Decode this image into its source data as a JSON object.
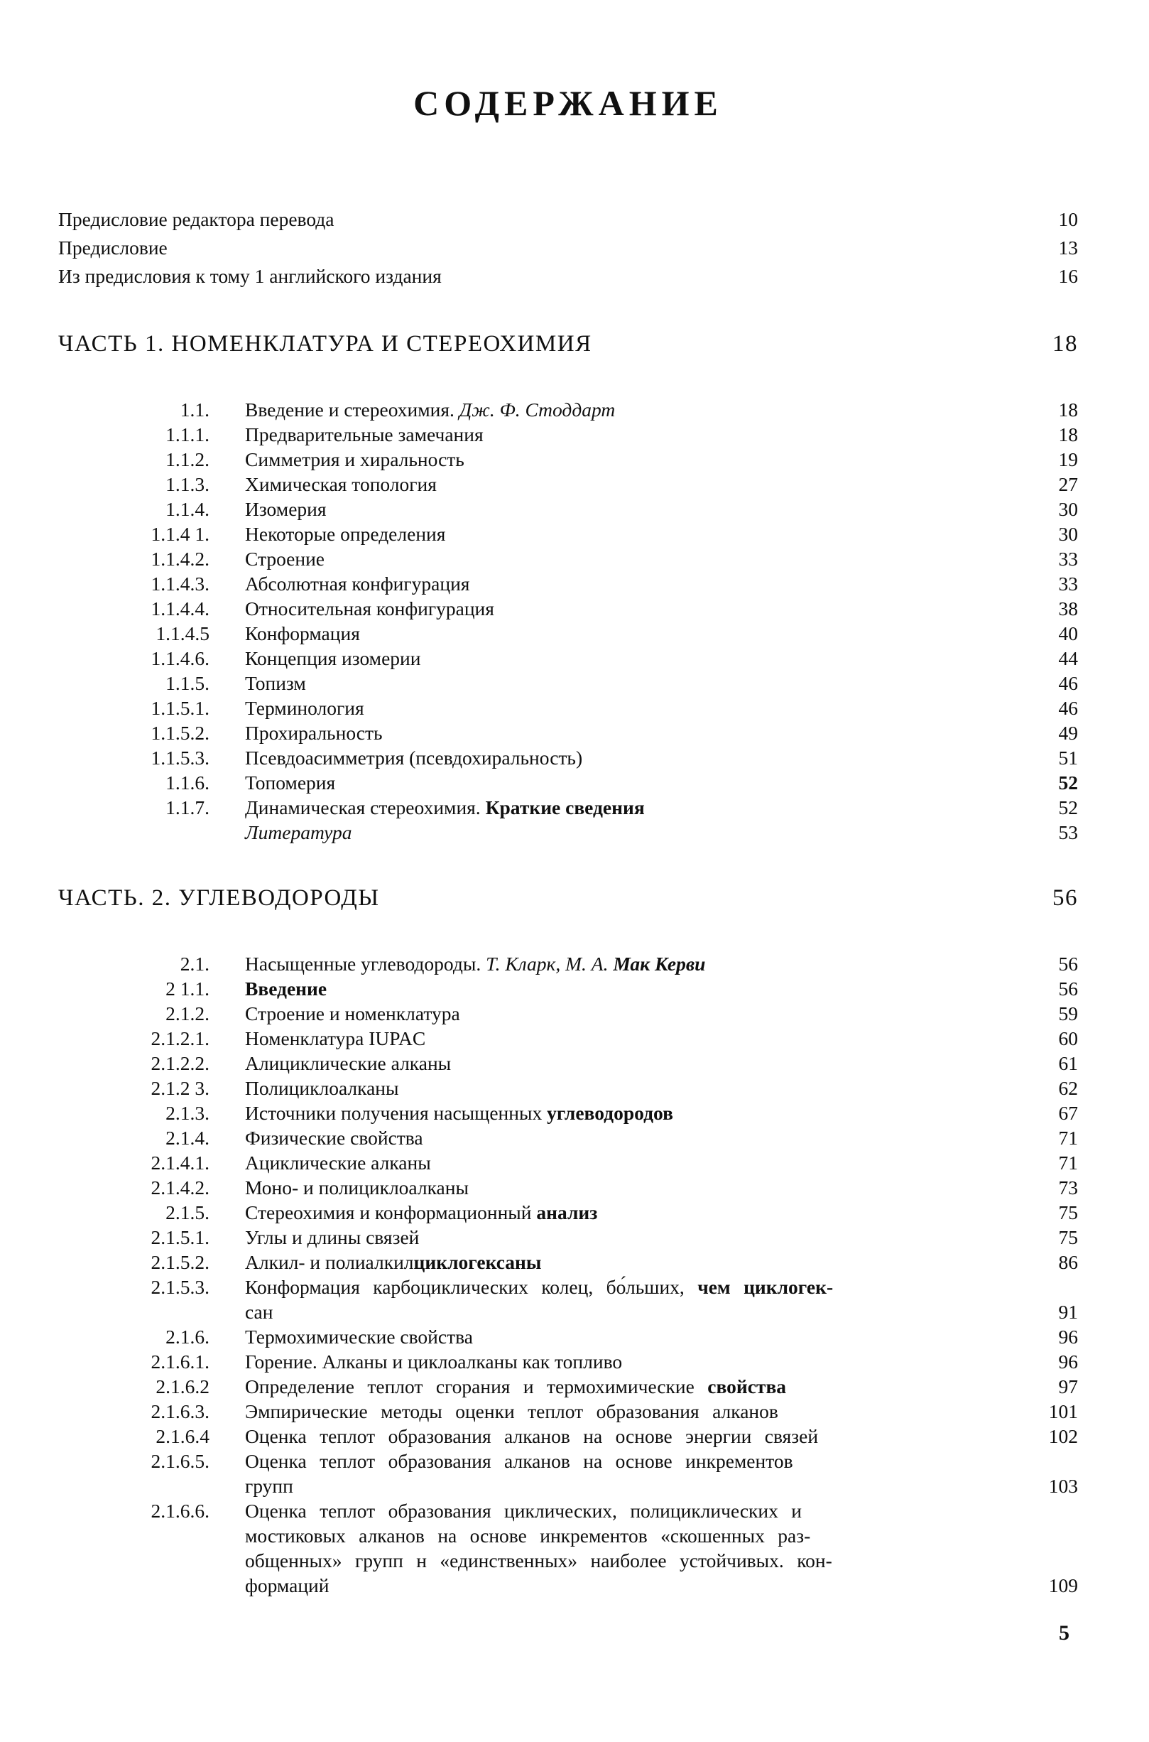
{
  "page": {
    "title": "СОДЕРЖАНИЕ",
    "folio": "5"
  },
  "front_matter": [
    {
      "title": "Предисловие редактора перевода",
      "page": "10"
    },
    {
      "title": "Предисловие",
      "page": "13"
    },
    {
      "title": "Из предисловия к тому 1 английского издания",
      "page": "16"
    }
  ],
  "sections": [
    {
      "heading": "ЧАСТЬ 1. НОМЕНКЛАТУРА И СТЕРЕОХИМИЯ",
      "page": "18",
      "entries": [
        {
          "num": "1.1.",
          "page": "18",
          "lines": [
            {
              "parts": [
                {
                  "t": "Введение и стереохимия. ",
                  "s": ""
                },
                {
                  "t": "Дж. Ф. Стоддарт",
                  "s": "i"
                }
              ]
            }
          ]
        },
        {
          "num": "1.1.1.",
          "page": "18",
          "lines": [
            {
              "parts": [
                {
                  "t": "Предварительные замечания",
                  "s": ""
                }
              ]
            }
          ]
        },
        {
          "num": "1.1.2.",
          "page": "19",
          "lines": [
            {
              "parts": [
                {
                  "t": "Симметрия и хиральность",
                  "s": ""
                }
              ]
            }
          ]
        },
        {
          "num": "1.1.3.",
          "page": "27",
          "lines": [
            {
              "parts": [
                {
                  "t": "Химическая топология",
                  "s": ""
                }
              ]
            }
          ]
        },
        {
          "num": "1.1.4.",
          "page": "30",
          "lines": [
            {
              "parts": [
                {
                  "t": "Изомерия",
                  "s": ""
                }
              ]
            }
          ]
        },
        {
          "num": "1.1.4 1.",
          "page": "30",
          "lines": [
            {
              "parts": [
                {
                  "t": "Некоторые определения",
                  "s": ""
                }
              ]
            }
          ]
        },
        {
          "num": "1.1.4.2.",
          "page": "33",
          "lines": [
            {
              "parts": [
                {
                  "t": "Строение",
                  "s": ""
                }
              ]
            }
          ]
        },
        {
          "num": "1.1.4.3.",
          "page": "33",
          "lines": [
            {
              "parts": [
                {
                  "t": "Абсолютная конфигурация",
                  "s": ""
                }
              ]
            }
          ]
        },
        {
          "num": "1.1.4.4.",
          "page": "38",
          "lines": [
            {
              "parts": [
                {
                  "t": "Относительная конфигурация",
                  "s": ""
                }
              ]
            }
          ]
        },
        {
          "num": "1.1.4.5",
          "page": "40",
          "lines": [
            {
              "parts": [
                {
                  "t": "Конформация",
                  "s": ""
                }
              ]
            }
          ]
        },
        {
          "num": "1.1.4.6.",
          "page": "44",
          "lines": [
            {
              "parts": [
                {
                  "t": "Концепция изомерии",
                  "s": ""
                }
              ]
            }
          ]
        },
        {
          "num": "1.1.5.",
          "page": "46",
          "lines": [
            {
              "parts": [
                {
                  "t": "Топизм",
                  "s": ""
                }
              ]
            }
          ]
        },
        {
          "num": "1.1.5.1.",
          "page": "46",
          "lines": [
            {
              "parts": [
                {
                  "t": "Терминология",
                  "s": ""
                }
              ]
            }
          ]
        },
        {
          "num": "1.1.5.2.",
          "page": "49",
          "lines": [
            {
              "parts": [
                {
                  "t": "Прохиральность",
                  "s": ""
                }
              ]
            }
          ]
        },
        {
          "num": "1.1.5.3.",
          "page": "51",
          "lines": [
            {
              "parts": [
                {
                  "t": "Псевдоасимметрия (псевдохиральность)",
                  "s": ""
                }
              ]
            }
          ]
        },
        {
          "num": "1.1.6.",
          "page": "52",
          "pageBold": true,
          "lines": [
            {
              "parts": [
                {
                  "t": "Топомерия",
                  "s": ""
                }
              ]
            }
          ]
        },
        {
          "num": "1.1.7.",
          "page": "52",
          "lines": [
            {
              "parts": [
                {
                  "t": "Динамическая стереохимия. ",
                  "s": ""
                },
                {
                  "t": "Краткие сведения",
                  "s": "b"
                }
              ]
            }
          ]
        },
        {
          "num": "",
          "page": "53",
          "lines": [
            {
              "parts": [
                {
                  "t": "Литература",
                  "s": "i"
                }
              ]
            }
          ]
        }
      ]
    },
    {
      "heading": "ЧАСТЬ. 2. УГЛЕВОДОРОДЫ",
      "page": "56",
      "entries": [
        {
          "num": "2.1.",
          "page": "56",
          "lines": [
            {
              "parts": [
                {
                  "t": "Насыщенные углеводороды. ",
                  "s": ""
                },
                {
                  "t": "Т. Кларк, М. А. ",
                  "s": "i"
                },
                {
                  "t": "Мак Керви",
                  "s": "bi"
                }
              ]
            }
          ]
        },
        {
          "num": "2 1.1.",
          "page": "56",
          "lines": [
            {
              "parts": [
                {
                  "t": "Введение",
                  "s": "b"
                }
              ]
            }
          ]
        },
        {
          "num": "2.1.2.",
          "page": "59",
          "lines": [
            {
              "parts": [
                {
                  "t": "Строение и номенклатура",
                  "s": ""
                }
              ]
            }
          ]
        },
        {
          "num": "2.1.2.1.",
          "page": "60",
          "lines": [
            {
              "parts": [
                {
                  "t": "Номенклатура IUPAC",
                  "s": ""
                }
              ]
            }
          ]
        },
        {
          "num": "2.1.2.2.",
          "page": "61",
          "lines": [
            {
              "parts": [
                {
                  "t": "Алициклические алканы",
                  "s": ""
                }
              ]
            }
          ]
        },
        {
          "num": "2.1.2 3.",
          "page": "62",
          "lines": [
            {
              "parts": [
                {
                  "t": "Полициклоалканы",
                  "s": ""
                }
              ]
            }
          ]
        },
        {
          "num": "2.1.3.",
          "page": "67",
          "lines": [
            {
              "parts": [
                {
                  "t": "Источники получения насыщенных ",
                  "s": ""
                },
                {
                  "t": "углеводородов",
                  "s": "b"
                }
              ]
            }
          ]
        },
        {
          "num": "2.1.4.",
          "page": "71",
          "lines": [
            {
              "parts": [
                {
                  "t": "Физические свойства",
                  "s": ""
                }
              ]
            }
          ]
        },
        {
          "num": "2.1.4.1.",
          "page": "71",
          "lines": [
            {
              "parts": [
                {
                  "t": "Ациклические алканы",
                  "s": ""
                }
              ]
            }
          ]
        },
        {
          "num": "2.1.4.2.",
          "page": "73",
          "lines": [
            {
              "parts": [
                {
                  "t": "Моно- и полициклоалканы",
                  "s": ""
                }
              ]
            }
          ]
        },
        {
          "num": "2.1.5.",
          "page": "75",
          "lines": [
            {
              "parts": [
                {
                  "t": "Стереохимия и конформационный ",
                  "s": ""
                },
                {
                  "t": "анализ",
                  "s": "b"
                }
              ]
            }
          ]
        },
        {
          "num": "2.1.5.1.",
          "page": "75",
          "lines": [
            {
              "parts": [
                {
                  "t": "Углы и длины связей",
                  "s": ""
                }
              ]
            }
          ]
        },
        {
          "num": "2.1.5.2.",
          "page": "86",
          "lines": [
            {
              "parts": [
                {
                  "t": "Алкил- и полиалкил",
                  "s": ""
                },
                {
                  "t": "циклогексаны",
                  "s": "b"
                }
              ]
            }
          ]
        },
        {
          "num": "2.1.5.3.",
          "page": "91",
          "lines": [
            {
              "sp": true,
              "parts": [
                {
                  "t": "Конформация карбоциклических колец, бо́льших, ",
                  "s": ""
                },
                {
                  "t": "чем циклогек-",
                  "s": "b"
                }
              ]
            },
            {
              "parts": [
                {
                  "t": "сан",
                  "s": ""
                }
              ]
            }
          ]
        },
        {
          "num": "2.1.6.",
          "page": "96",
          "lines": [
            {
              "parts": [
                {
                  "t": "Термохимические свойства",
                  "s": ""
                }
              ]
            }
          ]
        },
        {
          "num": "2.1.6.1.",
          "page": "96",
          "lines": [
            {
              "parts": [
                {
                  "t": "Горение. Алканы и циклоалканы как топливо",
                  "s": ""
                }
              ]
            }
          ]
        },
        {
          "num": "2.1.6.2",
          "page": "97",
          "lines": [
            {
              "sp": true,
              "parts": [
                {
                  "t": "Определение теплот сгорания и термохимические ",
                  "s": ""
                },
                {
                  "t": "свойства",
                  "s": "b"
                }
              ]
            }
          ]
        },
        {
          "num": "2.1.6.3.",
          "page": "101",
          "lines": [
            {
              "sp": true,
              "parts": [
                {
                  "t": "Эмпирические методы оценки теплот образования алканов",
                  "s": ""
                }
              ]
            }
          ]
        },
        {
          "num": "2.1.6.4",
          "page": "102",
          "lines": [
            {
              "sp": true,
              "parts": [
                {
                  "t": "Оценка теплот образования алканов на основе энергии связей",
                  "s": ""
                }
              ]
            }
          ]
        },
        {
          "num": "2.1.6.5.",
          "page": "103",
          "lines": [
            {
              "sp": true,
              "parts": [
                {
                  "t": "Оценка теплот образования алканов на основе инкрементов",
                  "s": ""
                }
              ]
            },
            {
              "parts": [
                {
                  "t": "групп",
                  "s": ""
                }
              ]
            }
          ]
        },
        {
          "num": "2.1.6.6.",
          "page": "109",
          "lines": [
            {
              "sp": true,
              "parts": [
                {
                  "t": "Оценка теплот образования циклических, полициклических и",
                  "s": ""
                }
              ]
            },
            {
              "sp": true,
              "parts": [
                {
                  "t": "мостиковых алканов на основе инкрементов «скошенных раз-",
                  "s": ""
                }
              ]
            },
            {
              "sp": true,
              "parts": [
                {
                  "t": "общенных» групп н «единственных» наиболее устойчивых. кон-",
                  "s": ""
                }
              ]
            },
            {
              "parts": [
                {
                  "t": "формаций",
                  "s": ""
                }
              ]
            }
          ]
        }
      ]
    }
  ]
}
